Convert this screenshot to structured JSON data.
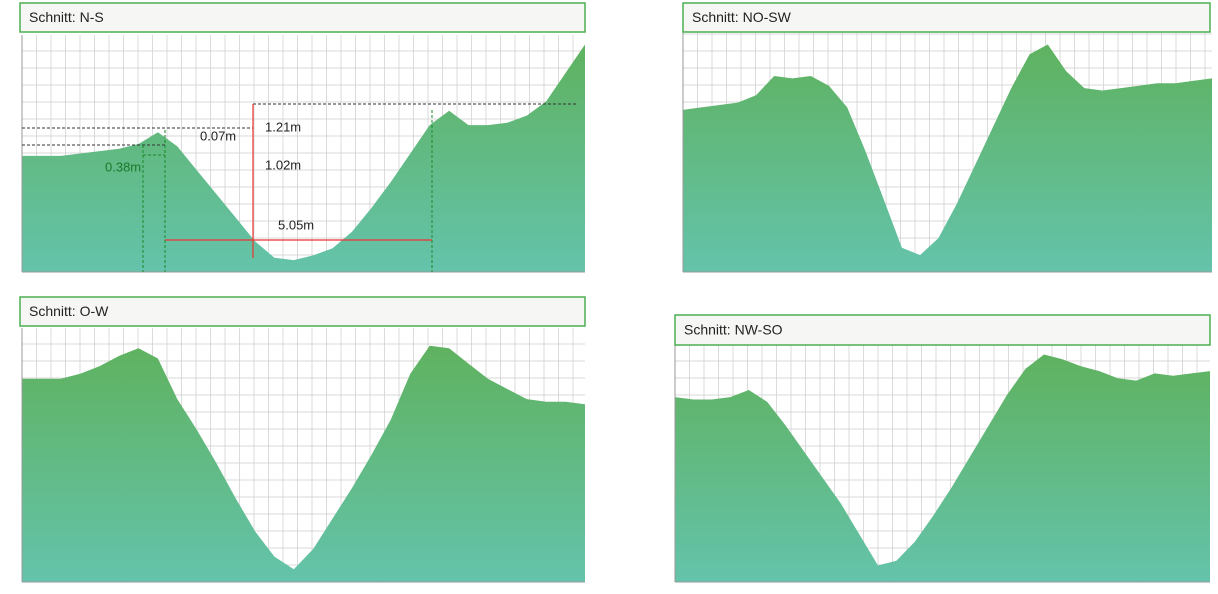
{
  "chart_data": [
    {
      "type": "area",
      "title": "Schnitt: N-S",
      "ylim": [
        0,
        100
      ],
      "grid": true,
      "color": "#5fb25f",
      "values": [
        49,
        49,
        49,
        50,
        51,
        52,
        54,
        59,
        53,
        43,
        33,
        23,
        13,
        6,
        5,
        7,
        10,
        17,
        27,
        38,
        50,
        62,
        68,
        62,
        62,
        63,
        66,
        72,
        84,
        96
      ],
      "annotations": [
        "0.07m",
        "1.21m",
        "0.38m",
        "1.02m",
        "5.05m"
      ]
    },
    {
      "type": "area",
      "title": "Schnitt: NO-SW",
      "ylim": [
        0,
        100
      ],
      "grid": true,
      "color": "#5fb25f",
      "values": [
        67,
        68,
        69,
        70,
        73,
        81,
        80,
        81,
        77,
        68,
        50,
        30,
        10,
        7,
        14,
        28,
        44,
        60,
        76,
        90,
        94,
        83,
        76,
        75,
        76,
        77,
        78,
        78,
        79,
        80
      ]
    },
    {
      "type": "area",
      "title": "Schnitt: O-W",
      "ylim": [
        0,
        100
      ],
      "grid": true,
      "color": "#5fb25f",
      "values": [
        80,
        80,
        80,
        82,
        85,
        89,
        92,
        88,
        72,
        60,
        47,
        33,
        20,
        10,
        5,
        13,
        25,
        37,
        50,
        64,
        82,
        93,
        92,
        86,
        80,
        76,
        72,
        71,
        71,
        70
      ]
    },
    {
      "type": "area",
      "title": "Schnitt: NW-SO",
      "ylim": [
        0,
        100
      ],
      "grid": true,
      "color": "#5fb25f",
      "values": [
        78,
        77,
        77,
        78,
        81,
        76,
        66,
        55,
        44,
        33,
        20,
        7,
        9,
        17,
        28,
        40,
        53,
        66,
        79,
        90,
        96,
        94,
        91,
        89,
        86,
        85,
        88,
        87,
        88,
        89
      ]
    }
  ]
}
